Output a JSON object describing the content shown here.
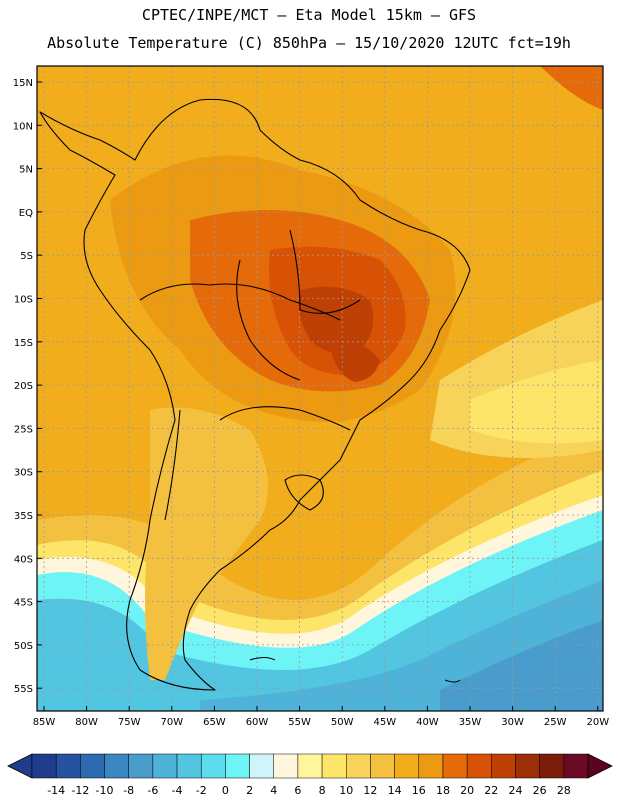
{
  "title_line1": "CPTEC/INPE/MCT –  Eta Model 15km – GFS",
  "title_line2": "Absolute Temperature (C) 850hPa – 15/10/2020 12UTC fct=19h",
  "lat_labels": [
    "15N",
    "10N",
    "5N",
    "EQ",
    "5S",
    "10S",
    "15S",
    "20S",
    "25S",
    "30S",
    "35S",
    "40S",
    "45S",
    "50S",
    "55S"
  ],
  "lon_labels": [
    "85W",
    "80W",
    "75W",
    "70W",
    "65W",
    "60W",
    "55W",
    "50W",
    "45W",
    "40W",
    "35W",
    "30W",
    "25W",
    "20W"
  ],
  "colorbar": {
    "ticks": [
      "-14",
      "-12",
      "-10",
      "-8",
      "-6",
      "-4",
      "-2",
      "0",
      "2",
      "4",
      "6",
      "8",
      "10",
      "12",
      "14",
      "16",
      "18",
      "20",
      "22",
      "24",
      "26",
      "28"
    ],
    "colors": [
      "#1f3d8c",
      "#2553a0",
      "#2d6bb0",
      "#3a86c0",
      "#4a9ccc",
      "#4fb2d8",
      "#52c6e0",
      "#5cdcec",
      "#6ef4f6",
      "#cff4fa",
      "#fff6dc",
      "#fff59a",
      "#fde56a",
      "#f8d35a",
      "#f4c040",
      "#f1ad1c",
      "#ec9a12",
      "#e46a0a",
      "#d85206",
      "#bf4005",
      "#9c2e08",
      "#7a1c0a",
      "#6a0a24"
    ]
  }
}
